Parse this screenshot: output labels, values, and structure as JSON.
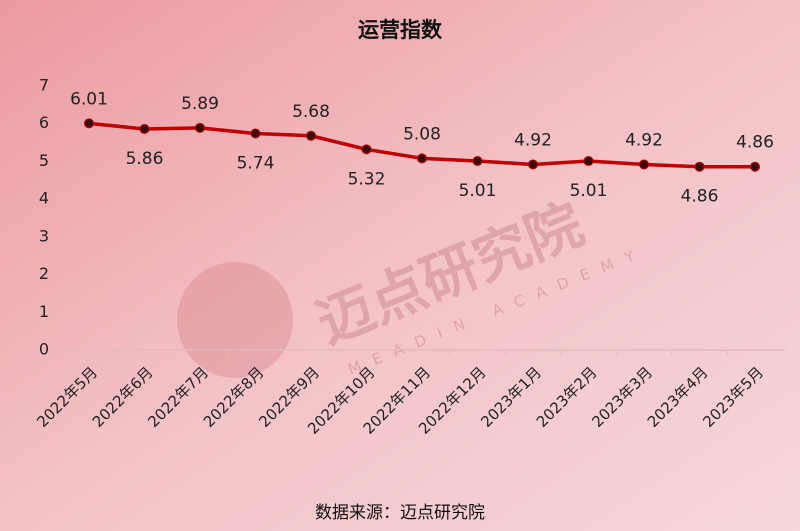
{
  "chart_data": {
    "type": "line",
    "title": "运营指数",
    "categories": [
      "2022年5月",
      "2022年6月",
      "2022年7月",
      "2022年8月",
      "2022年9月",
      "2022年10月",
      "2022年11月",
      "2022年12月",
      "2023年1月",
      "2023年2月",
      "2023年3月",
      "2023年4月",
      "2023年5月"
    ],
    "series": [
      {
        "name": "运营指数",
        "color": "#c00000",
        "values": [
          6.01,
          5.86,
          5.89,
          5.74,
          5.68,
          5.32,
          5.08,
          5.01,
          4.92,
          5.01,
          4.92,
          4.86,
          4.86
        ]
      }
    ],
    "ylim": [
      0,
      7
    ],
    "yticks": [
      0,
      1,
      2,
      3,
      4,
      5,
      6,
      7
    ],
    "grid": false,
    "watermark": {
      "name": "迈点研究院",
      "subtitle": "MEADIN ACADEMY"
    },
    "source": "数据来源：迈点研究院"
  }
}
